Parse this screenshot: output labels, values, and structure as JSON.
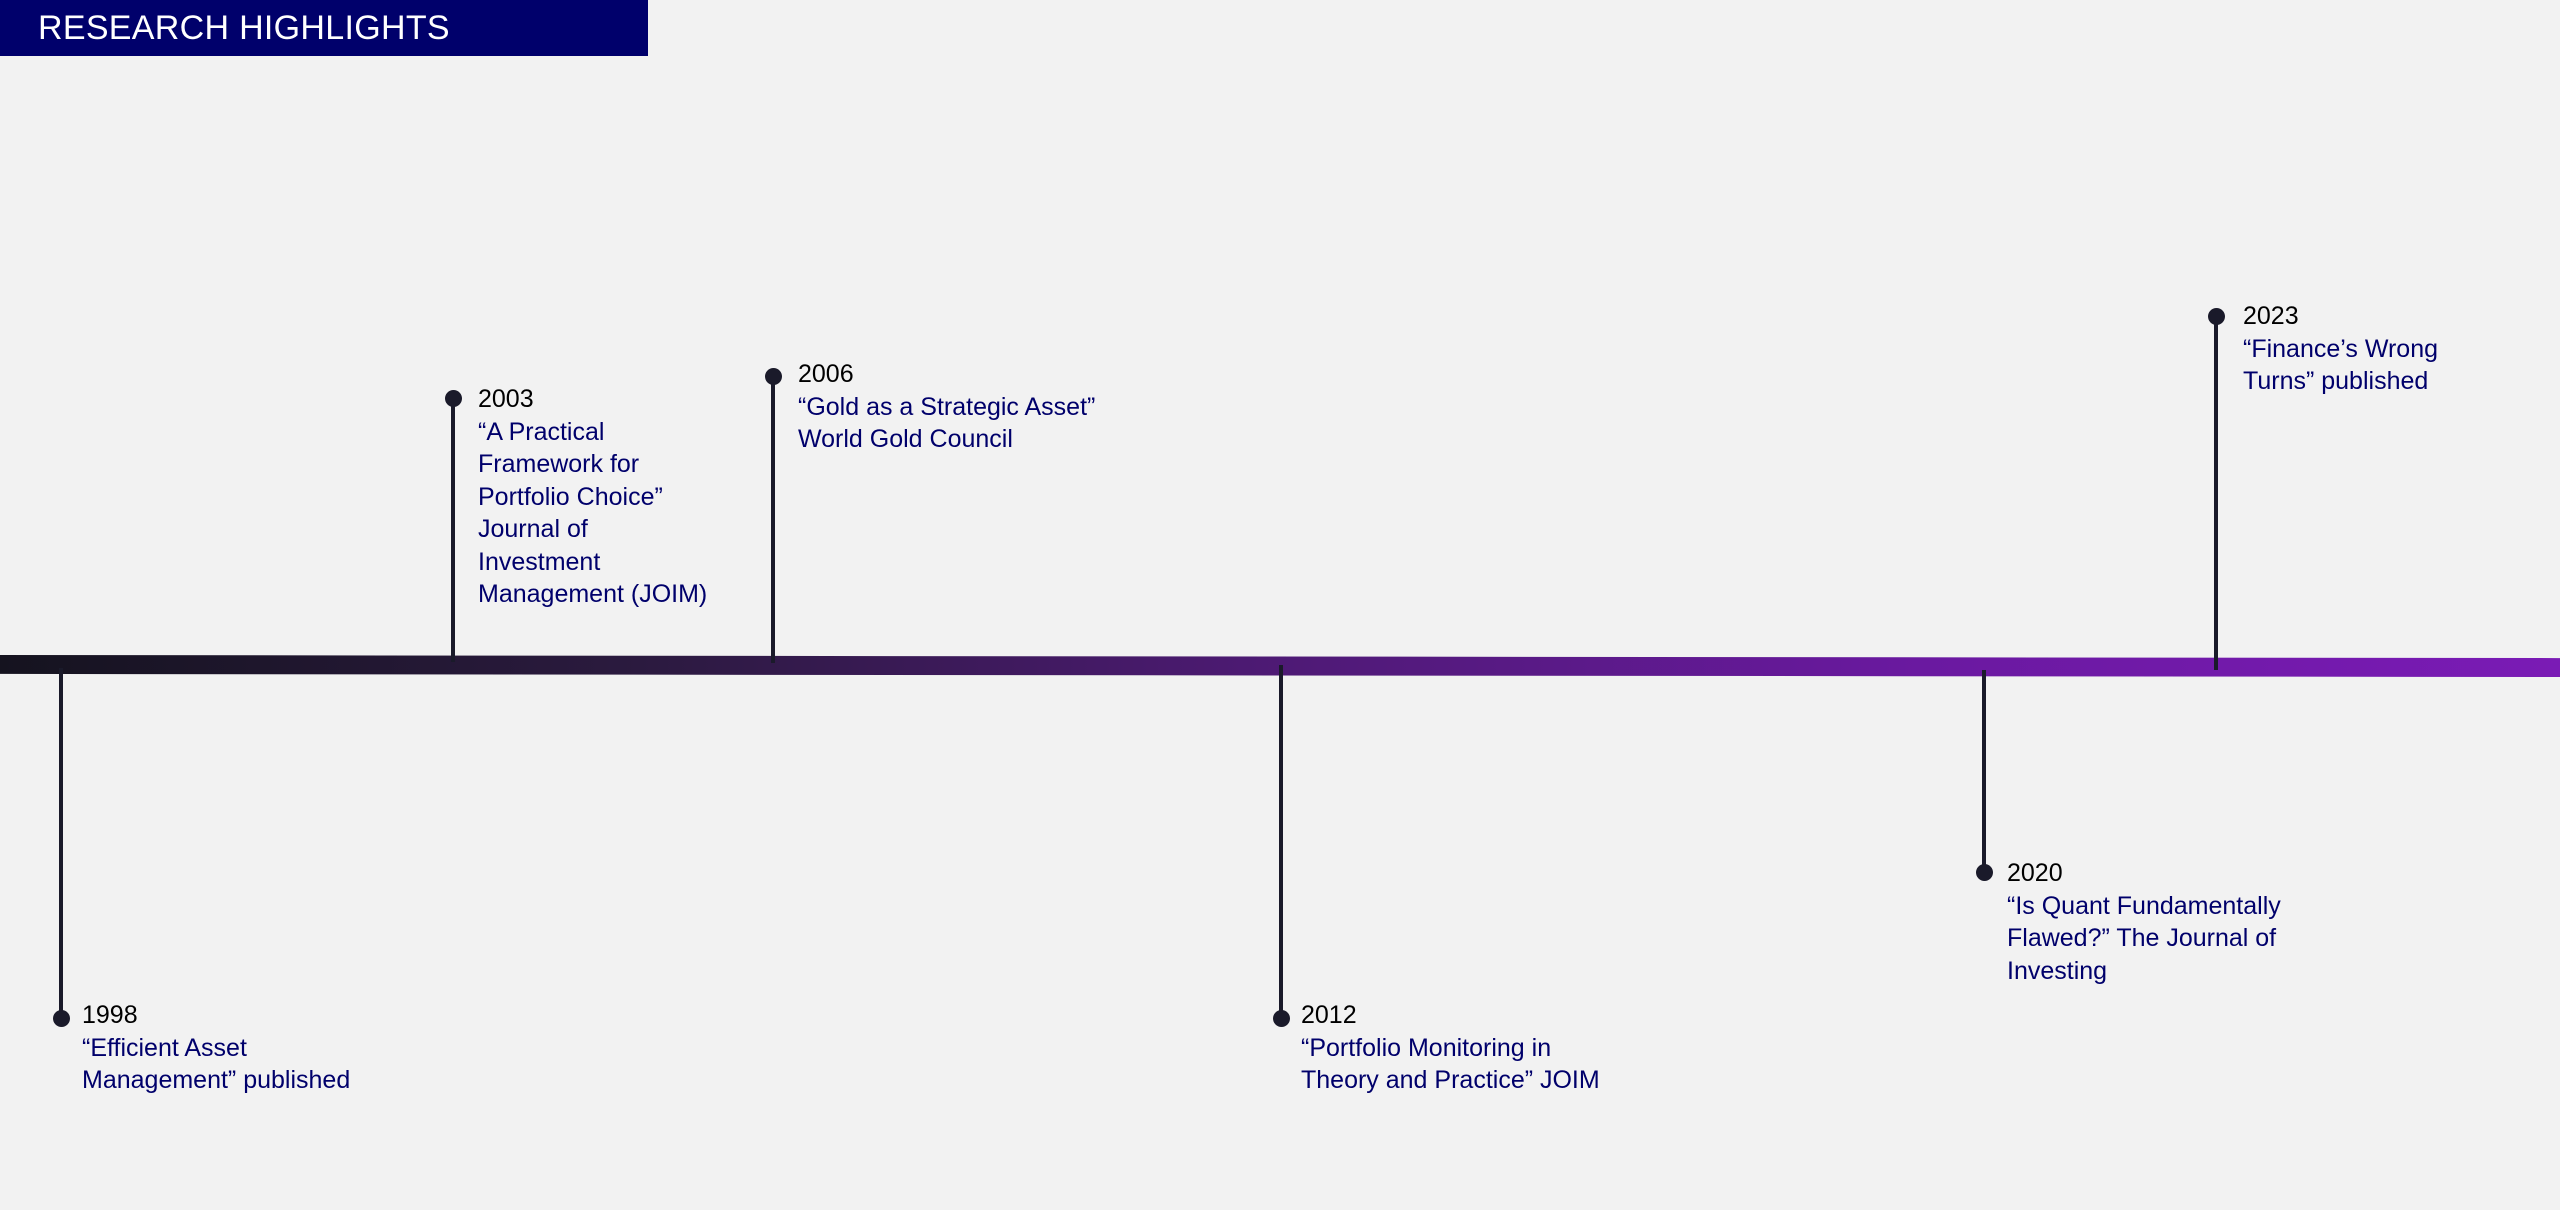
{
  "header": {
    "title": "RESEARCH HIGHLIGHTS",
    "background_color": "#00006b"
  },
  "timeline": {
    "bar_gradient": [
      "#15131f",
      "#7a1bb5"
    ],
    "events": [
      {
        "year": "1998",
        "lines": [
          "“Efficient Asset",
          "Management” published"
        ]
      },
      {
        "year": "2003",
        "lines": [
          "“A Practical",
          "Framework for",
          "Portfolio Choice”",
          "Journal of",
          "Investment",
          "Management (JOIM)"
        ]
      },
      {
        "year": "2006",
        "lines": [
          "“Gold as a Strategic Asset”",
          "World Gold Council"
        ]
      },
      {
        "year": "2012",
        "lines": [
          "“Portfolio Monitoring in",
          "Theory and Practice” JOIM"
        ]
      },
      {
        "year": "2020",
        "lines": [
          "“Is Quant Fundamentally",
          "Flawed?” The Journal of",
          "Investing"
        ]
      },
      {
        "year": "2023",
        "lines": [
          "“Finance’s Wrong",
          "Turns” published"
        ]
      }
    ]
  }
}
